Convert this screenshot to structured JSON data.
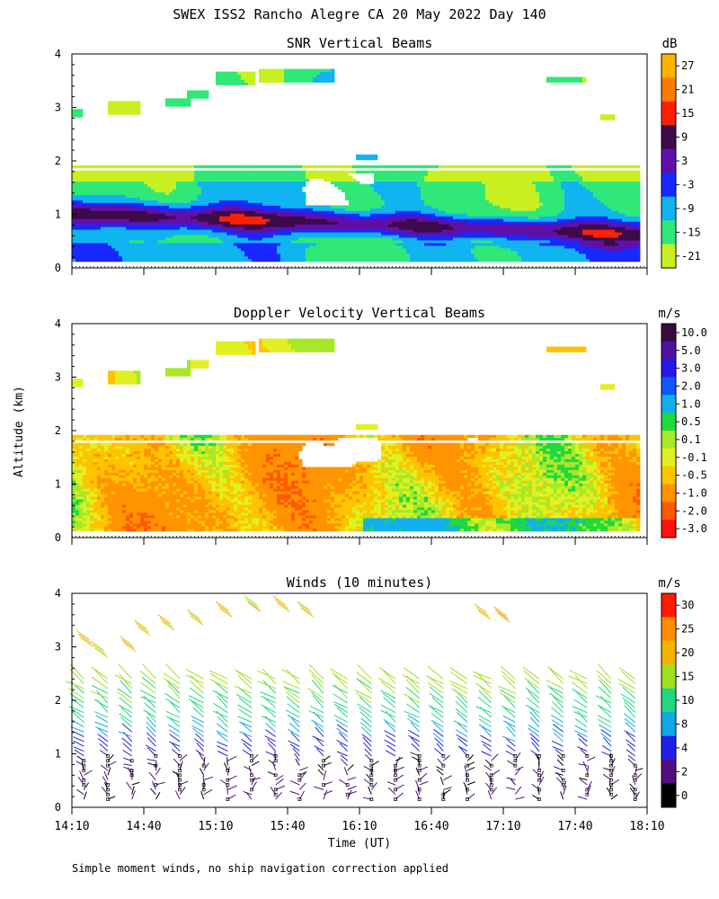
{
  "figure": {
    "title": "SWEX ISS2 Rancho Alegre CA  20 May 2022 Day 140",
    "y_axis_label": "Altitude (km)",
    "x_axis_label": "Time (UT)",
    "footnote": "Simple moment winds, no ship navigation correction applied"
  },
  "chart_data": [
    {
      "type": "heatmap",
      "title": "SNR Vertical Beams",
      "ylabel": "Altitude (km)",
      "ylim": [
        0,
        4
      ],
      "yticks": [
        "0",
        "1",
        "2",
        "3",
        "4"
      ],
      "xlim": [
        "14:10",
        "18:10"
      ],
      "colorbar": {
        "unit": "dB",
        "labels": [
          "27",
          "21",
          "15",
          "9",
          "3",
          "-3",
          "-9",
          "-15",
          "-21"
        ],
        "colors": [
          "#fcb400",
          "#ff7a00",
          "#ff2000",
          "#3d0a4a",
          "#6010a8",
          "#1828ff",
          "#10b4f0",
          "#30e878",
          "#c8f020"
        ]
      }
    },
    {
      "type": "heatmap",
      "title": "Doppler Velocity Vertical Beams",
      "ylabel": "Altitude (km)",
      "ylim": [
        0,
        4
      ],
      "yticks": [
        "0",
        "1",
        "2",
        "3",
        "4"
      ],
      "xlim": [
        "14:10",
        "18:10"
      ],
      "colorbar": {
        "unit": "m/s",
        "labels": [
          "10.0",
          "5.0",
          "3.0",
          "2.0",
          "1.0",
          "0.5",
          "0.1",
          "-0.1",
          "-0.5",
          "-1.0",
          "-2.0",
          "-3.0"
        ],
        "colors": [
          "#3a0a3e",
          "#4a14a0",
          "#2818e8",
          "#1058f8",
          "#10b0f0",
          "#20d840",
          "#a8e828",
          "#e0f020",
          "#ffc400",
          "#ff9400",
          "#ff5a00",
          "#ff1010"
        ]
      }
    },
    {
      "type": "scatter",
      "title": "Winds (10 minutes)",
      "ylabel": "Altitude (km)",
      "ylim": [
        0,
        4
      ],
      "yticks": [
        "0",
        "1",
        "2",
        "3",
        "4"
      ],
      "xtick_labels": [
        "14:10",
        "14:40",
        "15:10",
        "15:40",
        "16:10",
        "16:40",
        "17:10",
        "17:40",
        "18:10"
      ],
      "xlim": [
        "14:10",
        "18:10"
      ],
      "colorbar": {
        "unit": "m/s",
        "labels": [
          "30",
          "25",
          "20",
          "15",
          "10",
          "8",
          "4",
          "2",
          "0"
        ],
        "colors": [
          "#ff1a00",
          "#ff8c00",
          "#f0b400",
          "#a0e020",
          "#20d880",
          "#10a8e8",
          "#2020e8",
          "#501080",
          "#000000"
        ]
      },
      "profile_times": [
        "14:10",
        "14:20",
        "14:30",
        "14:40",
        "14:50",
        "15:00",
        "15:10",
        "15:20",
        "15:30",
        "15:40",
        "15:50",
        "16:00",
        "16:10",
        "16:20",
        "16:30",
        "16:40",
        "16:50",
        "17:00",
        "17:10",
        "17:20",
        "17:30",
        "17:40",
        "17:50",
        "18:00"
      ]
    }
  ]
}
